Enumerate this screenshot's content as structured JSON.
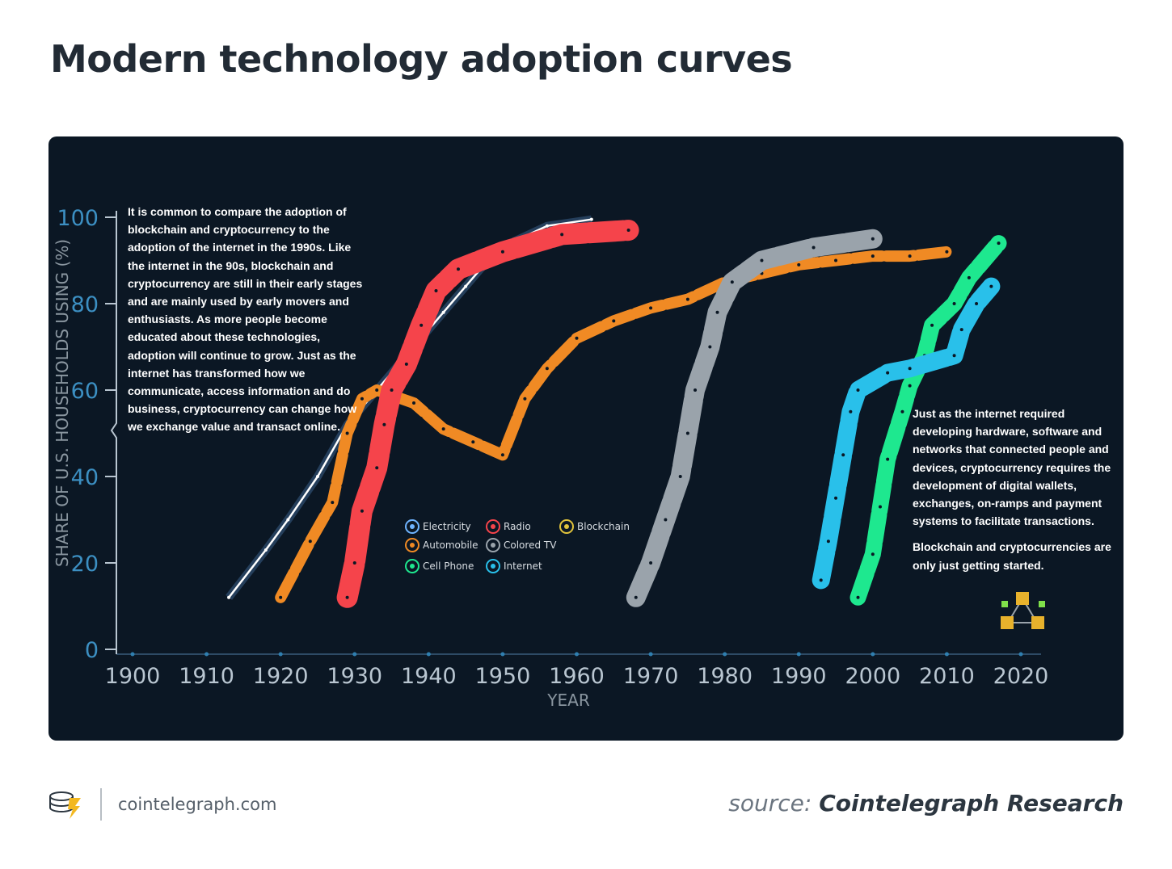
{
  "title": "Modern technology adoption curves",
  "chart_data": {
    "type": "line",
    "title": "Modern technology adoption curves",
    "xlabel": "YEAR",
    "ylabel": "SHARE OF U.S. HOUSEHOLDS USING (%)",
    "xlim": [
      1900,
      2020
    ],
    "ylim": [
      0,
      100
    ],
    "x_ticks": [
      "1900",
      "1910",
      "1920",
      "1930",
      "1940",
      "1950",
      "1960",
      "1970",
      "1980",
      "1990",
      "2000",
      "2010",
      "2020"
    ],
    "y_ticks": [
      "0",
      "20",
      "40",
      "60",
      "80",
      "100"
    ],
    "series": [
      {
        "name": "Electricity",
        "color": "#6fb4ff",
        "points": [
          [
            1913,
            12
          ],
          [
            1918,
            23
          ],
          [
            1921,
            30
          ],
          [
            1925,
            40
          ],
          [
            1929,
            52
          ],
          [
            1932,
            58
          ],
          [
            1936,
            66
          ],
          [
            1939,
            72
          ],
          [
            1942,
            78
          ],
          [
            1945,
            84
          ],
          [
            1948,
            90
          ],
          [
            1951,
            94
          ],
          [
            1956,
            98
          ],
          [
            1962,
            99.5
          ]
        ]
      },
      {
        "name": "Automobile",
        "color": "#f08a24",
        "points": [
          [
            1920,
            12
          ],
          [
            1924,
            25
          ],
          [
            1927,
            34
          ],
          [
            1929,
            50
          ],
          [
            1931,
            58
          ],
          [
            1933,
            60
          ],
          [
            1938,
            57
          ],
          [
            1942,
            51
          ],
          [
            1946,
            48
          ],
          [
            1950,
            45
          ],
          [
            1953,
            58
          ],
          [
            1956,
            65
          ],
          [
            1960,
            72
          ],
          [
            1965,
            76
          ],
          [
            1970,
            79
          ],
          [
            1975,
            81
          ],
          [
            1980,
            85
          ],
          [
            1985,
            87
          ],
          [
            1990,
            89
          ],
          [
            1995,
            90
          ],
          [
            2000,
            91
          ],
          [
            2005,
            91
          ],
          [
            2010,
            92
          ]
        ]
      },
      {
        "name": "Radio",
        "color": "#f5444b",
        "points": [
          [
            1929,
            12
          ],
          [
            1930,
            20
          ],
          [
            1931,
            32
          ],
          [
            1933,
            42
          ],
          [
            1934,
            52
          ],
          [
            1935,
            60
          ],
          [
            1937,
            66
          ],
          [
            1939,
            75
          ],
          [
            1941,
            83
          ],
          [
            1944,
            88
          ],
          [
            1950,
            92
          ],
          [
            1958,
            96
          ],
          [
            1967,
            97
          ]
        ]
      },
      {
        "name": "Colored TV",
        "color": "#9aa3ab",
        "points": [
          [
            1968,
            12
          ],
          [
            1970,
            20
          ],
          [
            1972,
            30
          ],
          [
            1974,
            40
          ],
          [
            1975,
            50
          ],
          [
            1976,
            60
          ],
          [
            1978,
            70
          ],
          [
            1979,
            78
          ],
          [
            1981,
            85
          ],
          [
            1985,
            90
          ],
          [
            1992,
            93
          ],
          [
            2000,
            95
          ]
        ]
      },
      {
        "name": "Cell Phone",
        "color": "#1ee88f",
        "points": [
          [
            1998,
            12
          ],
          [
            2000,
            22
          ],
          [
            2001,
            33
          ],
          [
            2002,
            44
          ],
          [
            2004,
            55
          ],
          [
            2005,
            61
          ],
          [
            2007,
            68
          ],
          [
            2008,
            75
          ],
          [
            2011,
            80
          ],
          [
            2013,
            86
          ],
          [
            2017,
            94
          ]
        ]
      },
      {
        "name": "Internet",
        "color": "#29c0ea",
        "points": [
          [
            1993,
            16
          ],
          [
            1994,
            25
          ],
          [
            1995,
            35
          ],
          [
            1996,
            45
          ],
          [
            1997,
            55
          ],
          [
            1998,
            60
          ],
          [
            2002,
            64
          ],
          [
            2005,
            65
          ],
          [
            2011,
            68
          ],
          [
            2012,
            74
          ],
          [
            2014,
            80
          ],
          [
            2016,
            84
          ]
        ]
      }
    ],
    "legend": [
      "Electricity",
      "Radio",
      "Blockchain",
      "Automobile",
      "Colored TV",
      "Cell Phone",
      "Internet"
    ],
    "legend_colors": {
      "Electricity": "#6fb4ff",
      "Radio": "#f5444b",
      "Blockchain": "#e2c43c",
      "Automobile": "#f08a24",
      "Colored TV": "#9aa3ab",
      "Cell Phone": "#1ee88f",
      "Internet": "#29c0ea"
    },
    "annotations": {
      "left": "It is common to compare the adoption of blockchain and cryptocurrency to the adoption of the internet in the 1990s. Like the internet in the 90s, blockchain and cryptocurrency are still in their early stages and are mainly used by early movers and enthusiasts. As more people become educated about these technologies, adoption will continue to grow. Just as the internet has transformed how we communicate, access information and do business, cryptocurrency can change how we exchange value and transact online.",
      "right_1": "Just as the internet required developing hardware, software and networks that connected people and devices, cryptocurrency requires the development of digital wallets, exchanges, on-ramps and payment systems to facilitate transactions.",
      "right_2": "Blockchain and cryptocurrencies are only just getting started."
    }
  },
  "footer": {
    "site": "cointelegraph.com",
    "source_prefix": "source:",
    "source_org": "Cointelegraph Research"
  }
}
